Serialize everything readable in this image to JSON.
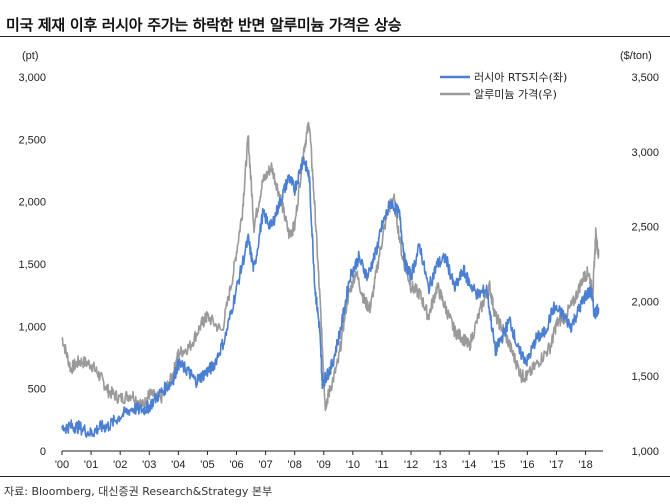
{
  "title": "미국 제재 이후 러시아 주가는 하락한 반면 알루미늄 가격은 상승",
  "source": "자료: Bloomberg, 대신증권 Research&Strategy 본부",
  "colors": {
    "rts": "#4A7FD1",
    "aluminum": "#9A9A9A"
  },
  "chart_data": {
    "type": "line",
    "x_ticks": [
      "'00",
      "'01",
      "'02",
      "'03",
      "'04",
      "'05",
      "'06",
      "'07",
      "'08",
      "'09",
      "'10",
      "'11",
      "'12",
      "'13",
      "'14",
      "'15",
      "'16",
      "'17",
      "'18"
    ],
    "xlim": [
      2000,
      2018.6
    ],
    "left_axis": {
      "unit": "(pt)",
      "ylim": [
        0,
        3000
      ],
      "ticks": [
        "0",
        "500",
        "1,000",
        "1,500",
        "2,000",
        "2,500",
        "3,000"
      ]
    },
    "right_axis": {
      "unit": "($/ton)",
      "ylim": [
        1000,
        3500
      ],
      "ticks": [
        "1,000",
        "1,500",
        "2,000",
        "2,500",
        "3,000",
        "3,500"
      ]
    },
    "legend_position": "top-right",
    "series": [
      {
        "name": "러시아 RTS지수(좌)",
        "axis": "left",
        "points": [
          [
            2000.0,
            180
          ],
          [
            2000.3,
            200
          ],
          [
            2000.6,
            190
          ],
          [
            2001.0,
            140
          ],
          [
            2001.3,
            190
          ],
          [
            2001.6,
            200
          ],
          [
            2002.0,
            280
          ],
          [
            2002.4,
            340
          ],
          [
            2002.8,
            330
          ],
          [
            2003.0,
            360
          ],
          [
            2003.4,
            470
          ],
          [
            2003.8,
            560
          ],
          [
            2004.0,
            700
          ],
          [
            2004.3,
            650
          ],
          [
            2004.6,
            560
          ],
          [
            2004.9,
            620
          ],
          [
            2005.2,
            680
          ],
          [
            2005.6,
            900
          ],
          [
            2006.0,
            1300
          ],
          [
            2006.4,
            1700
          ],
          [
            2006.6,
            1450
          ],
          [
            2006.9,
            1900
          ],
          [
            2007.2,
            1800
          ],
          [
            2007.5,
            2000
          ],
          [
            2007.8,
            2200
          ],
          [
            2008.0,
            2100
          ],
          [
            2008.3,
            2350
          ],
          [
            2008.5,
            2200
          ],
          [
            2008.7,
            1300
          ],
          [
            2008.85,
            1000
          ],
          [
            2008.95,
            550
          ],
          [
            2009.1,
            600
          ],
          [
            2009.3,
            700
          ],
          [
            2009.6,
            1000
          ],
          [
            2009.9,
            1400
          ],
          [
            2010.2,
            1550
          ],
          [
            2010.5,
            1400
          ],
          [
            2010.8,
            1600
          ],
          [
            2011.0,
            1800
          ],
          [
            2011.3,
            2000
          ],
          [
            2011.6,
            1900
          ],
          [
            2011.8,
            1500
          ],
          [
            2012.0,
            1400
          ],
          [
            2012.3,
            1650
          ],
          [
            2012.6,
            1300
          ],
          [
            2012.9,
            1500
          ],
          [
            2013.2,
            1550
          ],
          [
            2013.5,
            1300
          ],
          [
            2013.8,
            1450
          ],
          [
            2014.0,
            1350
          ],
          [
            2014.3,
            1250
          ],
          [
            2014.6,
            1300
          ],
          [
            2014.9,
            800
          ],
          [
            2015.1,
            900
          ],
          [
            2015.4,
            1050
          ],
          [
            2015.7,
            800
          ],
          [
            2016.0,
            720
          ],
          [
            2016.3,
            900
          ],
          [
            2016.6,
            950
          ],
          [
            2016.9,
            1150
          ],
          [
            2017.2,
            1100
          ],
          [
            2017.5,
            1000
          ],
          [
            2017.8,
            1150
          ],
          [
            2018.0,
            1250
          ],
          [
            2018.2,
            1280
          ],
          [
            2018.3,
            1100
          ],
          [
            2018.45,
            1150
          ]
        ]
      },
      {
        "name": "알루미늄 가격(우)",
        "axis": "right",
        "points": [
          [
            2000.0,
            1760
          ],
          [
            2000.3,
            1550
          ],
          [
            2000.6,
            1600
          ],
          [
            2001.0,
            1580
          ],
          [
            2001.3,
            1500
          ],
          [
            2001.6,
            1400
          ],
          [
            2002.0,
            1350
          ],
          [
            2002.4,
            1380
          ],
          [
            2002.8,
            1300
          ],
          [
            2003.0,
            1380
          ],
          [
            2003.4,
            1350
          ],
          [
            2003.8,
            1500
          ],
          [
            2004.0,
            1650
          ],
          [
            2004.4,
            1700
          ],
          [
            2004.8,
            1850
          ],
          [
            2005.0,
            1900
          ],
          [
            2005.5,
            1800
          ],
          [
            2005.9,
            2200
          ],
          [
            2006.2,
            2600
          ],
          [
            2006.4,
            3100
          ],
          [
            2006.6,
            2500
          ],
          [
            2006.9,
            2800
          ],
          [
            2007.2,
            2900
          ],
          [
            2007.5,
            2700
          ],
          [
            2007.8,
            2450
          ],
          [
            2008.0,
            2500
          ],
          [
            2008.3,
            3000
          ],
          [
            2008.5,
            3200
          ],
          [
            2008.7,
            2600
          ],
          [
            2008.9,
            1900
          ],
          [
            2009.05,
            1300
          ],
          [
            2009.2,
            1400
          ],
          [
            2009.5,
            1600
          ],
          [
            2009.8,
            2000
          ],
          [
            2010.1,
            2200
          ],
          [
            2010.4,
            2000
          ],
          [
            2010.6,
            1950
          ],
          [
            2010.9,
            2300
          ],
          [
            2011.2,
            2600
          ],
          [
            2011.4,
            2700
          ],
          [
            2011.7,
            2300
          ],
          [
            2012.0,
            2100
          ],
          [
            2012.3,
            2050
          ],
          [
            2012.6,
            1900
          ],
          [
            2012.9,
            2100
          ],
          [
            2013.2,
            1950
          ],
          [
            2013.5,
            1800
          ],
          [
            2013.8,
            1750
          ],
          [
            2014.0,
            1700
          ],
          [
            2014.4,
            1950
          ],
          [
            2014.7,
            2100
          ],
          [
            2014.9,
            1900
          ],
          [
            2015.2,
            1800
          ],
          [
            2015.5,
            1650
          ],
          [
            2015.8,
            1500
          ],
          [
            2016.0,
            1500
          ],
          [
            2016.4,
            1600
          ],
          [
            2016.8,
            1700
          ],
          [
            2017.0,
            1850
          ],
          [
            2017.3,
            1900
          ],
          [
            2017.6,
            2000
          ],
          [
            2017.9,
            2150
          ],
          [
            2018.1,
            2200
          ],
          [
            2018.25,
            2050
          ],
          [
            2018.35,
            2450
          ],
          [
            2018.45,
            2300
          ]
        ]
      }
    ]
  }
}
